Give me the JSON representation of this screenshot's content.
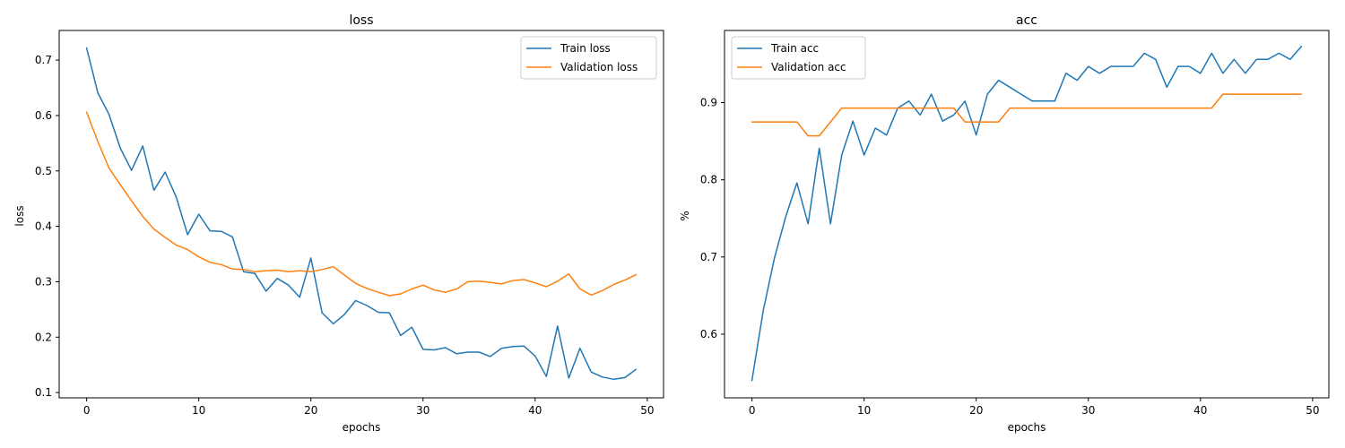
{
  "chart_data": [
    {
      "type": "line",
      "title": "loss",
      "xlabel": "epochs",
      "ylabel": "loss",
      "xlim": [
        -2.45,
        51.45
      ],
      "ylim": [
        0.0905,
        0.7535
      ],
      "xticks": [
        0,
        10,
        20,
        30,
        40,
        50
      ],
      "yticks": [
        0.1,
        0.2,
        0.3,
        0.4,
        0.5,
        0.6,
        0.7
      ],
      "ytick_labels": [
        "0.1",
        "0.2",
        "0.3",
        "0.4",
        "0.5",
        "0.6",
        "0.7"
      ],
      "grid": false,
      "legend": "top-right",
      "x": [
        0,
        1,
        2,
        3,
        4,
        5,
        6,
        7,
        8,
        9,
        10,
        11,
        12,
        13,
        14,
        15,
        16,
        17,
        18,
        19,
        20,
        21,
        22,
        23,
        24,
        25,
        26,
        27,
        28,
        29,
        30,
        31,
        32,
        33,
        34,
        35,
        36,
        37,
        38,
        39,
        40,
        41,
        42,
        43,
        44,
        45,
        46,
        47,
        48,
        49
      ],
      "series": [
        {
          "name": "Train loss",
          "color": "#1f77b4",
          "values": [
            0.722,
            0.641,
            0.602,
            0.541,
            0.501,
            0.545,
            0.465,
            0.498,
            0.452,
            0.385,
            0.422,
            0.392,
            0.391,
            0.381,
            0.318,
            0.315,
            0.283,
            0.306,
            0.294,
            0.272,
            0.343,
            0.244,
            0.224,
            0.241,
            0.266,
            0.257,
            0.245,
            0.244,
            0.203,
            0.218,
            0.178,
            0.177,
            0.181,
            0.17,
            0.173,
            0.173,
            0.165,
            0.18,
            0.183,
            0.184,
            0.166,
            0.129,
            0.22,
            0.126,
            0.18,
            0.137,
            0.128,
            0.124,
            0.127,
            0.142
          ]
        },
        {
          "name": "Validation loss",
          "color": "#ff7f0e",
          "values": [
            0.606,
            0.553,
            0.505,
            0.475,
            0.446,
            0.418,
            0.395,
            0.38,
            0.366,
            0.358,
            0.345,
            0.335,
            0.331,
            0.323,
            0.322,
            0.318,
            0.32,
            0.321,
            0.318,
            0.32,
            0.318,
            0.322,
            0.327,
            0.312,
            0.297,
            0.288,
            0.281,
            0.275,
            0.278,
            0.287,
            0.294,
            0.285,
            0.281,
            0.287,
            0.3,
            0.301,
            0.299,
            0.296,
            0.302,
            0.304,
            0.298,
            0.291,
            0.301,
            0.314,
            0.287,
            0.276,
            0.284,
            0.295,
            0.303,
            0.313
          ]
        }
      ]
    },
    {
      "type": "line",
      "title": "acc",
      "xlabel": "epochs",
      "ylabel": "%",
      "xlim": [
        -2.45,
        51.45
      ],
      "ylim": [
        0.5175,
        0.9935
      ],
      "xticks": [
        0,
        10,
        20,
        30,
        40,
        50
      ],
      "yticks": [
        0.6,
        0.7,
        0.8,
        0.9
      ],
      "ytick_labels": [
        "0.6",
        "0.7",
        "0.8",
        "0.9"
      ],
      "grid": false,
      "legend": "top-left",
      "x": [
        0,
        1,
        2,
        3,
        4,
        5,
        6,
        7,
        8,
        9,
        10,
        11,
        12,
        13,
        14,
        15,
        16,
        17,
        18,
        19,
        20,
        21,
        22,
        23,
        24,
        25,
        26,
        27,
        28,
        29,
        30,
        31,
        32,
        33,
        34,
        35,
        36,
        37,
        38,
        39,
        40,
        41,
        42,
        43,
        44,
        45,
        46,
        47,
        48,
        49
      ],
      "series": [
        {
          "name": "Train acc",
          "color": "#1f77b4",
          "values": [
            0.54,
            0.63,
            0.698,
            0.752,
            0.796,
            0.743,
            0.841,
            0.743,
            0.832,
            0.876,
            0.832,
            0.867,
            0.858,
            0.893,
            0.902,
            0.884,
            0.911,
            0.876,
            0.884,
            0.902,
            0.858,
            0.911,
            0.929,
            0.92,
            0.911,
            0.902,
            0.902,
            0.902,
            0.938,
            0.929,
            0.947,
            0.938,
            0.947,
            0.947,
            0.947,
            0.964,
            0.956,
            0.92,
            0.947,
            0.947,
            0.938,
            0.964,
            0.938,
            0.956,
            0.938,
            0.956,
            0.956,
            0.964,
            0.956,
            0.973
          ]
        },
        {
          "name": "Validation acc",
          "color": "#ff7f0e",
          "values": [
            0.875,
            0.875,
            0.875,
            0.875,
            0.875,
            0.857,
            0.857,
            0.875,
            0.893,
            0.893,
            0.893,
            0.893,
            0.893,
            0.893,
            0.893,
            0.893,
            0.893,
            0.893,
            0.893,
            0.875,
            0.875,
            0.875,
            0.875,
            0.893,
            0.893,
            0.893,
            0.893,
            0.893,
            0.893,
            0.893,
            0.893,
            0.893,
            0.893,
            0.893,
            0.893,
            0.893,
            0.893,
            0.893,
            0.893,
            0.893,
            0.893,
            0.893,
            0.911,
            0.911,
            0.911,
            0.911,
            0.911,
            0.911,
            0.911,
            0.911
          ]
        }
      ]
    }
  ]
}
